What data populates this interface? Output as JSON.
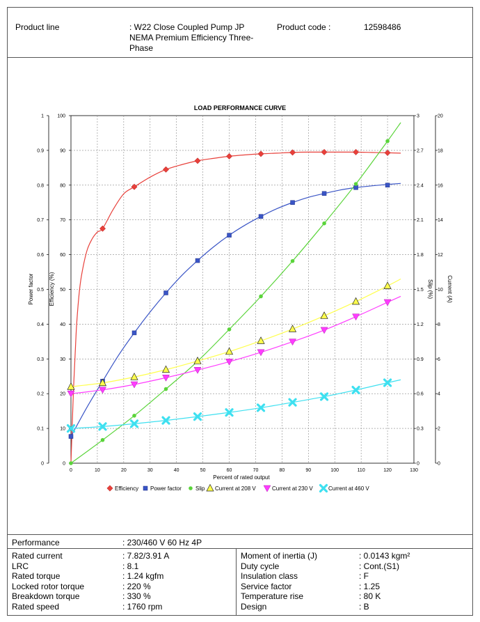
{
  "header": {
    "product_line_label": "Product line",
    "product_line_value": ": W22 Close Coupled Pump JP NEMA Premium Efficiency Three-Phase",
    "product_code_label": "Product code :",
    "product_code_value": "12598486"
  },
  "chart_data": {
    "type": "line",
    "title": "LOAD PERFORMANCE CURVE",
    "xlabel": "Percent of rated output",
    "xlim": [
      0,
      130
    ],
    "x_ticks": [
      "0",
      "10",
      "20",
      "30",
      "40",
      "50",
      "60",
      "70",
      "80",
      "90",
      "100",
      "110",
      "120",
      "130"
    ],
    "axes": {
      "power_factor": {
        "label": "Power factor",
        "lim": [
          0,
          1
        ],
        "ticks": [
          "0",
          "0.1",
          "0.2",
          "0.3",
          "0.4",
          "0.5",
          "0.6",
          "0.7",
          "0.8",
          "0.9",
          "1"
        ]
      },
      "efficiency": {
        "label": "Efficiency (%)",
        "lim": [
          0,
          100
        ],
        "ticks": [
          "0",
          "10",
          "20",
          "30",
          "40",
          "50",
          "60",
          "70",
          "80",
          "90",
          "100"
        ]
      },
      "slip": {
        "label": "Slip (%)",
        "lim": [
          0,
          3
        ],
        "ticks": [
          "0",
          "0.3",
          "0.6",
          "0.9",
          "1.2",
          "1.5",
          "1.8",
          "2.1",
          "2.4",
          "2.7",
          "3"
        ]
      },
      "current": {
        "label": "Current (A)",
        "lim": [
          0,
          20
        ],
        "ticks": [
          "0",
          "2",
          "4",
          "6",
          "8",
          "10",
          "12",
          "14",
          "16",
          "18",
          "20"
        ]
      }
    },
    "grid": true,
    "legend": "bottom",
    "series": [
      {
        "name": "Efficiency",
        "axis": "efficiency",
        "color": "#e8403a",
        "marker": "diamond",
        "x": [
          12,
          24,
          36,
          48,
          60,
          72,
          84,
          96,
          108,
          120
        ],
        "y": [
          67.5,
          79.5,
          84.5,
          87,
          88.3,
          89,
          89.4,
          89.5,
          89.5,
          89.3
        ],
        "curve_x": [
          0,
          1,
          2,
          3,
          4,
          6,
          8,
          10,
          12,
          16,
          20,
          24,
          30,
          36,
          42,
          48,
          54,
          60,
          66,
          72,
          78,
          84,
          90,
          96,
          102,
          108,
          114,
          120,
          125
        ],
        "curve_y": [
          0,
          22,
          38,
          48,
          54,
          61,
          64.5,
          66.5,
          67.5,
          73,
          77.5,
          79.5,
          82.3,
          84.5,
          85.9,
          87,
          87.7,
          88.3,
          88.7,
          89,
          89.2,
          89.4,
          89.5,
          89.5,
          89.5,
          89.5,
          89.4,
          89.3,
          89.2
        ]
      },
      {
        "name": "Power factor",
        "axis": "power_factor",
        "color": "#3a55c6",
        "marker": "square",
        "x": [
          0,
          12,
          24,
          36,
          48,
          60,
          72,
          84,
          96,
          108,
          120
        ],
        "y": [
          0.077,
          0.236,
          0.375,
          0.49,
          0.583,
          0.656,
          0.71,
          0.75,
          0.776,
          0.793,
          0.8
        ],
        "curve_x": [
          0,
          6,
          12,
          18,
          24,
          30,
          36,
          42,
          48,
          54,
          60,
          66,
          72,
          78,
          84,
          90,
          96,
          102,
          108,
          114,
          120,
          125
        ],
        "curve_y": [
          0.077,
          0.16,
          0.236,
          0.31,
          0.375,
          0.435,
          0.49,
          0.54,
          0.583,
          0.622,
          0.656,
          0.685,
          0.71,
          0.732,
          0.75,
          0.765,
          0.776,
          0.786,
          0.793,
          0.798,
          0.802,
          0.805
        ]
      },
      {
        "name": "Slip",
        "axis": "slip",
        "color": "#5ad43a",
        "marker": "circle",
        "x": [
          0,
          12,
          24,
          36,
          48,
          60,
          72,
          84,
          96,
          108,
          120
        ],
        "y": [
          0,
          0.2,
          0.41,
          0.64,
          0.88,
          1.155,
          1.44,
          1.745,
          2.07,
          2.41,
          2.78
        ],
        "curve_x": [
          0,
          12,
          24,
          36,
          48,
          60,
          72,
          84,
          96,
          108,
          120,
          125
        ],
        "curve_y": [
          0,
          0.2,
          0.41,
          0.64,
          0.88,
          1.155,
          1.44,
          1.745,
          2.07,
          2.41,
          2.78,
          2.94
        ]
      },
      {
        "name": "Current at 208 V",
        "axis": "current",
        "color": "#ffff4d",
        "marker": "triangle",
        "x": [
          0,
          12,
          24,
          36,
          48,
          60,
          72,
          84,
          96,
          108,
          120
        ],
        "y": [
          4.4,
          4.62,
          4.96,
          5.38,
          5.88,
          6.42,
          7.04,
          7.72,
          8.48,
          9.3,
          10.2
        ],
        "curve_x": [
          0,
          12,
          24,
          36,
          48,
          60,
          72,
          84,
          96,
          108,
          120,
          125
        ],
        "curve_y": [
          4.4,
          4.62,
          4.96,
          5.38,
          5.88,
          6.42,
          7.04,
          7.72,
          8.48,
          9.3,
          10.2,
          10.6
        ]
      },
      {
        "name": "Current at 230 V",
        "axis": "current",
        "color": "#ff3cff",
        "marker": "triangle-down",
        "x": [
          0,
          12,
          24,
          36,
          48,
          60,
          72,
          84,
          96,
          108,
          120
        ],
        "y": [
          4.0,
          4.22,
          4.53,
          4.92,
          5.36,
          5.84,
          6.38,
          6.99,
          7.66,
          8.43,
          9.26
        ],
        "curve_x": [
          0,
          12,
          24,
          36,
          48,
          60,
          72,
          84,
          96,
          108,
          120,
          125
        ],
        "curve_y": [
          4.0,
          4.22,
          4.53,
          4.92,
          5.36,
          5.84,
          6.38,
          6.99,
          7.66,
          8.43,
          9.26,
          9.6
        ]
      },
      {
        "name": "Current at 460 V",
        "axis": "current",
        "color": "#3ee0f0",
        "marker": "cross",
        "x": [
          0,
          12,
          24,
          36,
          48,
          60,
          72,
          84,
          96,
          108,
          120
        ],
        "y": [
          2.0,
          2.11,
          2.27,
          2.46,
          2.68,
          2.92,
          3.19,
          3.5,
          3.83,
          4.21,
          4.63
        ],
        "curve_x": [
          0,
          12,
          24,
          36,
          48,
          60,
          72,
          84,
          96,
          108,
          120,
          125
        ],
        "curve_y": [
          2.0,
          2.11,
          2.27,
          2.46,
          2.68,
          2.92,
          3.19,
          3.5,
          3.83,
          4.21,
          4.63,
          4.8
        ]
      }
    ]
  },
  "performance": {
    "label": "Performance",
    "value": ": 230/460 V 60 Hz 4P"
  },
  "specs_left": [
    {
      "label": "Rated current",
      "value": ": 7.82/3.91 A"
    },
    {
      "label": "LRC",
      "value": ": 8.1"
    },
    {
      "label": "Rated torque",
      "value": ": 1.24 kgfm"
    },
    {
      "label": "Locked rotor torque",
      "value": ": 220 %"
    },
    {
      "label": "Breakdown torque",
      "value": ": 330 %"
    },
    {
      "label": "Rated speed",
      "value": ": 1760 rpm"
    }
  ],
  "specs_right": [
    {
      "label": "Moment of inertia (J)",
      "value": ": 0.0143 kgm²"
    },
    {
      "label": "Duty cycle",
      "value": ": Cont.(S1)"
    },
    {
      "label": "Insulation class",
      "value": ": F"
    },
    {
      "label": "Service factor",
      "value": ": 1.25"
    },
    {
      "label": "Temperature rise",
      "value": ": 80 K"
    },
    {
      "label": "Design",
      "value": ": B"
    }
  ]
}
